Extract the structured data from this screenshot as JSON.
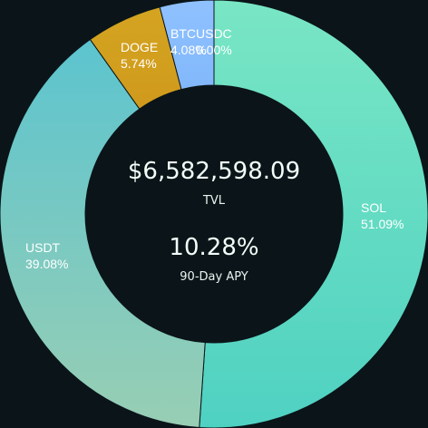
{
  "chart_data": {
    "type": "pie",
    "title": "",
    "slices": [
      {
        "name": "USDC",
        "percent_label": "0.00%",
        "value": 0.0
      },
      {
        "name": "SOL",
        "percent_label": "51.09%",
        "value": 51.09
      },
      {
        "name": "USDT",
        "percent_label": "39.08%",
        "value": 39.08
      },
      {
        "name": "DOGE",
        "percent_label": "5.74%",
        "value": 5.74
      },
      {
        "name": "BTC",
        "percent_label": "4.08%",
        "value": 4.08
      }
    ]
  },
  "center": {
    "tvl_value": "$6,582,598.09",
    "tvl_label": "TVL",
    "apy_value": "10.28%",
    "apy_label": "90-Day APY"
  }
}
